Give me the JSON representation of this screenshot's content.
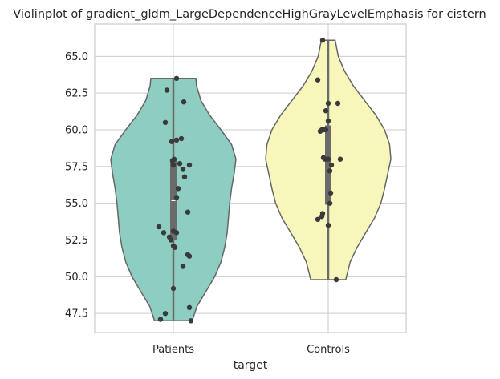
{
  "chart_data": {
    "type": "violin",
    "title": "Violinplot of gradient_gldm_LargeDependenceHighGrayLevelEmphasis for cistern",
    "xlabel": "target",
    "ylabel": "",
    "ylim": [
      46.2,
      67.2
    ],
    "yticks": [
      47.5,
      50.0,
      52.5,
      55.0,
      57.5,
      60.0,
      62.5,
      65.0
    ],
    "ytick_labels": [
      "47.5",
      "50.0",
      "52.5",
      "55.0",
      "57.5",
      "60.0",
      "62.5",
      "65.0"
    ],
    "grid": true,
    "categories": [
      "Patients",
      "Controls"
    ],
    "series": [
      {
        "category": "Patients",
        "color": "#8ecdc1",
        "min": 47.0,
        "max": 63.5,
        "q1": 52.5,
        "median": 55.2,
        "q3": 58.0,
        "density": [
          [
            47.0,
            0.3
          ],
          [
            48.0,
            0.38
          ],
          [
            49.0,
            0.52
          ],
          [
            50.0,
            0.66
          ],
          [
            51.0,
            0.76
          ],
          [
            52.0,
            0.82
          ],
          [
            53.0,
            0.86
          ],
          [
            54.0,
            0.88
          ],
          [
            55.0,
            0.9
          ],
          [
            56.0,
            0.93
          ],
          [
            57.0,
            0.97
          ],
          [
            58.0,
            1.0
          ],
          [
            59.0,
            0.93
          ],
          [
            60.0,
            0.76
          ],
          [
            61.0,
            0.58
          ],
          [
            62.0,
            0.44
          ],
          [
            63.0,
            0.37
          ],
          [
            63.5,
            0.36
          ]
        ],
        "points": [
          [
            0.04,
            63.5
          ],
          [
            -0.08,
            62.7
          ],
          [
            0.13,
            61.9
          ],
          [
            -0.1,
            60.5
          ],
          [
            -0.02,
            59.2
          ],
          [
            0.04,
            59.3
          ],
          [
            0.1,
            59.4
          ],
          [
            0.01,
            58.0
          ],
          [
            -0.01,
            57.9
          ],
          [
            0.0,
            57.6
          ],
          [
            0.08,
            57.7
          ],
          [
            0.12,
            57.3
          ],
          [
            0.2,
            57.6
          ],
          [
            0.14,
            56.8
          ],
          [
            0.06,
            56.0
          ],
          [
            0.04,
            55.4
          ],
          [
            0.18,
            54.4
          ],
          [
            -0.18,
            53.4
          ],
          [
            -0.12,
            53.0
          ],
          [
            0.0,
            53.1
          ],
          [
            0.04,
            53.0
          ],
          [
            -0.05,
            52.7
          ],
          [
            -0.03,
            52.5
          ],
          [
            0.0,
            52.1
          ],
          [
            0.02,
            52.0
          ],
          [
            0.18,
            51.5
          ],
          [
            0.2,
            51.4
          ],
          [
            0.12,
            50.7
          ],
          [
            0.0,
            49.2
          ],
          [
            -0.1,
            47.5
          ],
          [
            0.2,
            47.9
          ],
          [
            -0.16,
            47.1
          ],
          [
            0.22,
            47.0
          ]
        ]
      },
      {
        "category": "Controls",
        "color": "#f8f7bb",
        "min": 49.8,
        "max": 66.1,
        "q1": 54.9,
        "median": 58.0,
        "q3": 60.3,
        "density": [
          [
            49.8,
            0.28
          ],
          [
            51.0,
            0.35
          ],
          [
            52.0,
            0.46
          ],
          [
            53.0,
            0.6
          ],
          [
            54.0,
            0.74
          ],
          [
            55.0,
            0.84
          ],
          [
            56.0,
            0.9
          ],
          [
            57.0,
            0.95
          ],
          [
            58.0,
            1.0
          ],
          [
            59.0,
            0.98
          ],
          [
            60.0,
            0.9
          ],
          [
            61.0,
            0.76
          ],
          [
            62.0,
            0.58
          ],
          [
            63.0,
            0.4
          ],
          [
            64.0,
            0.26
          ],
          [
            65.0,
            0.16
          ],
          [
            66.1,
            0.11
          ]
        ],
        "points": [
          [
            -0.07,
            66.1
          ],
          [
            -0.13,
            63.4
          ],
          [
            0.0,
            61.8
          ],
          [
            0.12,
            61.8
          ],
          [
            -0.03,
            61.3
          ],
          [
            0.0,
            60.6
          ],
          [
            -0.03,
            60.0
          ],
          [
            -0.1,
            59.9
          ],
          [
            -0.06,
            60.0
          ],
          [
            -0.08,
            60.0
          ],
          [
            -0.06,
            58.1
          ],
          [
            -0.04,
            58.0
          ],
          [
            0.0,
            58.0
          ],
          [
            0.15,
            58.0
          ],
          [
            0.04,
            57.6
          ],
          [
            0.02,
            57.2
          ],
          [
            0.03,
            55.7
          ],
          [
            0.02,
            55.0
          ],
          [
            -0.07,
            54.3
          ],
          [
            -0.08,
            54.1
          ],
          [
            -0.13,
            53.9
          ],
          [
            0.0,
            53.5
          ],
          [
            0.1,
            49.8
          ]
        ]
      }
    ]
  }
}
